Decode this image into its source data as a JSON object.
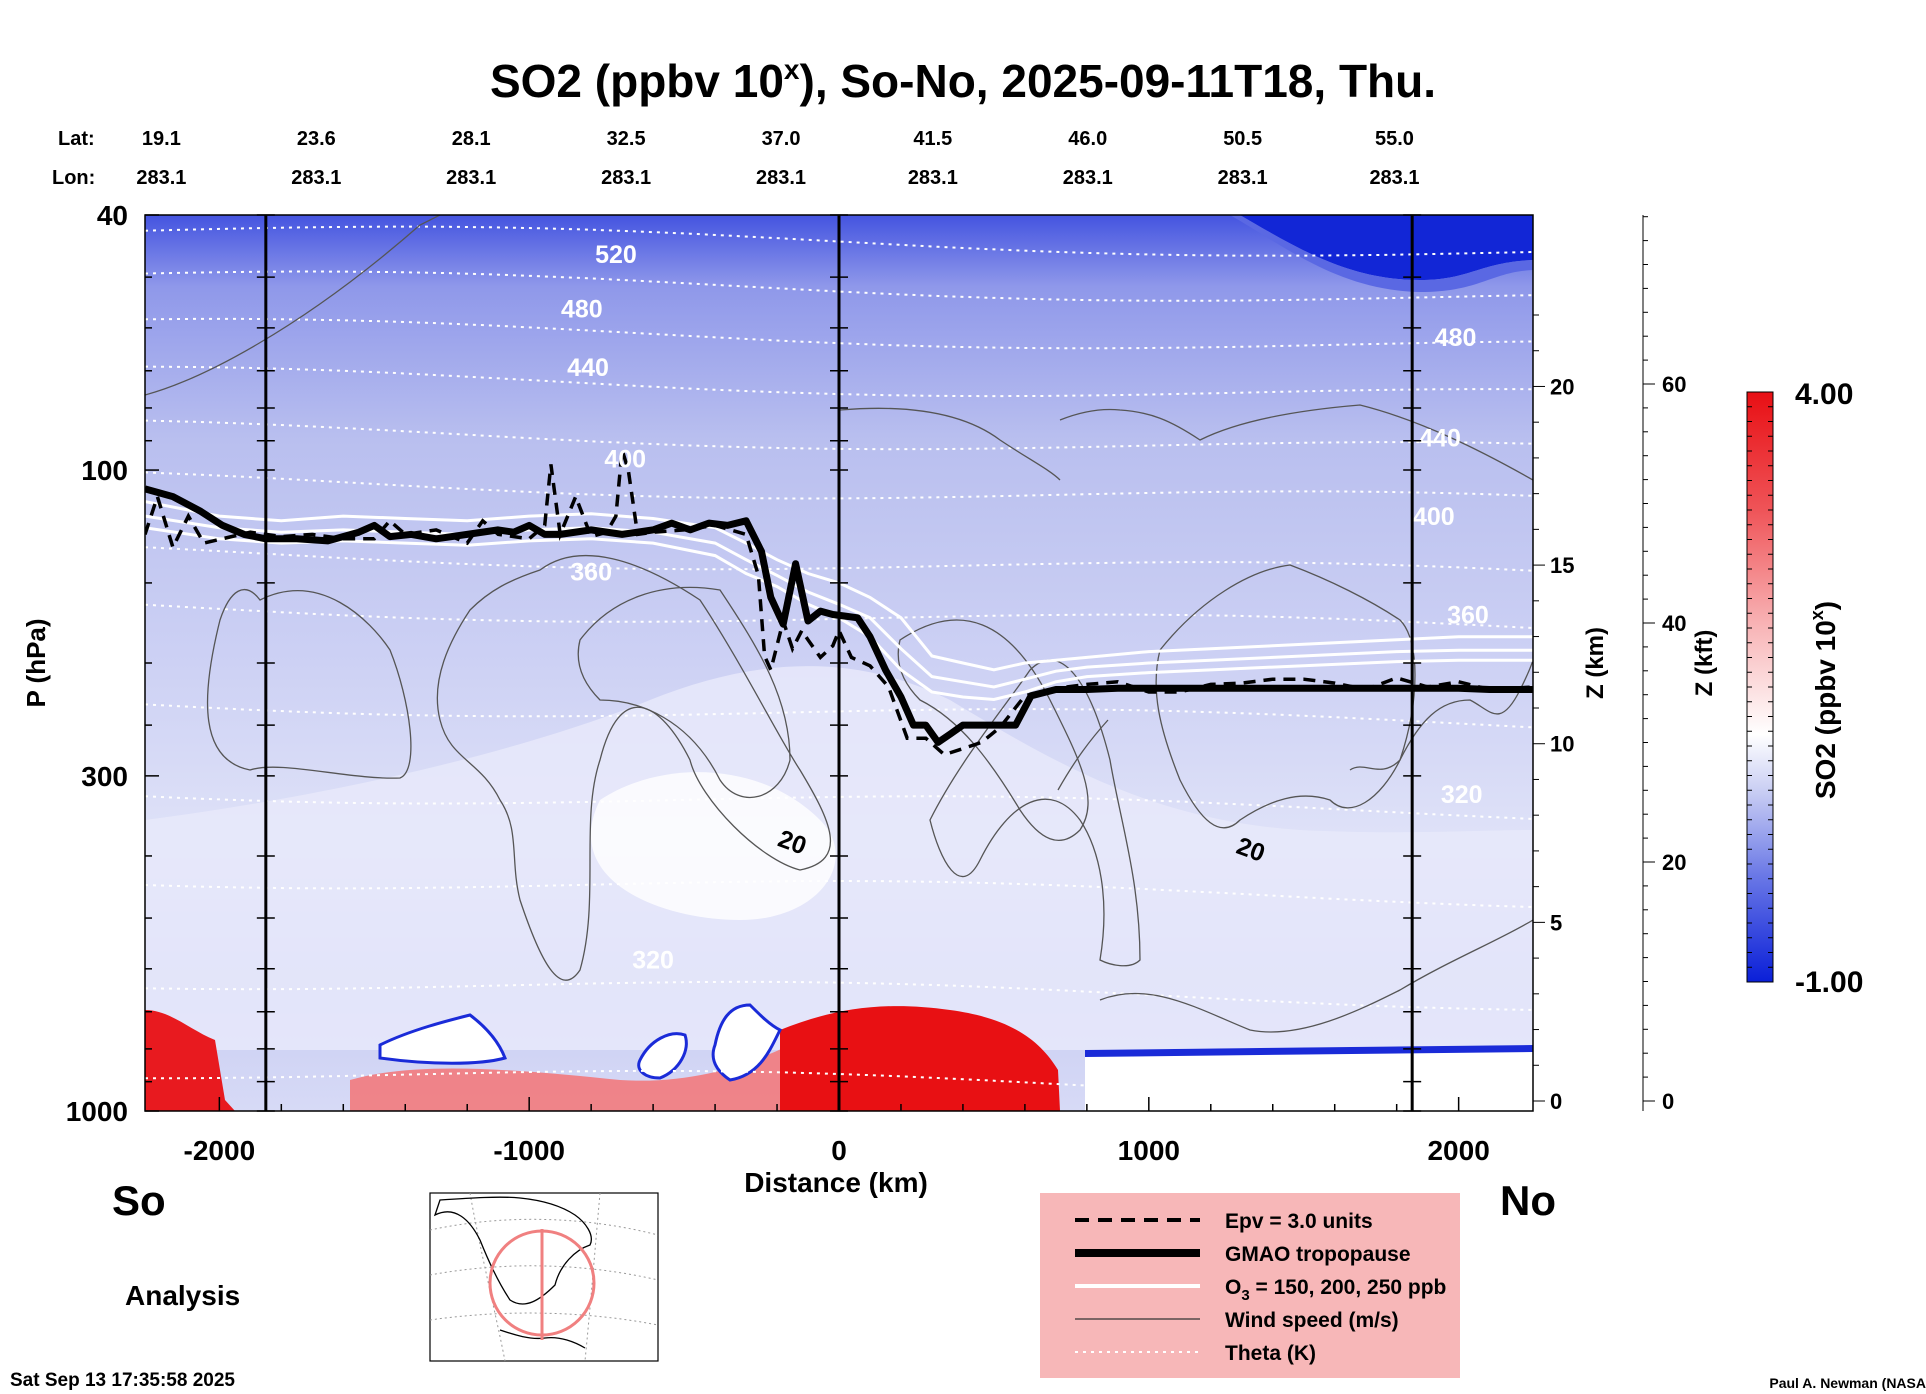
{
  "chart_data": {
    "type": "heatmap",
    "title_main": "SO2 (ppbv 10",
    "title_sup": "x",
    "title_rest": "), So-No, 2025-09-11T18, Thu.",
    "lat_label": "Lat:",
    "lon_label": "Lon:",
    "lats": [
      "19.1",
      "23.6",
      "28.1",
      "32.5",
      "37.0",
      "41.5",
      "46.0",
      "50.5",
      "55.0"
    ],
    "lons": [
      "283.1",
      "283.1",
      "283.1",
      "283.1",
      "283.1",
      "283.1",
      "283.1",
      "283.1",
      "283.1"
    ],
    "lat_lon_distances": [
      -2200,
      -1700,
      -1200,
      -700,
      -200,
      290,
      790,
      1290,
      1780
    ],
    "xlabel": "Distance (km)",
    "xlim": [
      -2240,
      2240
    ],
    "xticks": [
      -2000,
      -1000,
      0,
      1000,
      2000
    ],
    "vertical_lines": [
      -1850,
      0,
      1850
    ],
    "ylabel": "P (hPa)",
    "yscale": "log",
    "ylim": [
      1000,
      40
    ],
    "yticks": [
      40,
      100,
      300,
      1000
    ],
    "zkm_label": "Z (km)",
    "zkm_ticks": [
      0,
      5,
      10,
      15,
      20
    ],
    "zkft_label": "Z (kft)",
    "zkft_ticks": [
      0,
      20,
      40,
      60
    ],
    "colorbar": {
      "label": "SO2 (ppbv 10",
      "label_sup": "x",
      "label_end": ")",
      "max": "4.00",
      "min": "-1.00"
    },
    "theta_labels": [
      {
        "text": "520",
        "x": -720,
        "p": 46
      },
      {
        "text": "480",
        "x": -830,
        "p": 56
      },
      {
        "text": "440",
        "x": -810,
        "p": 69
      },
      {
        "text": "400",
        "x": -690,
        "p": 96
      },
      {
        "text": "480",
        "x": 1990,
        "p": 62
      },
      {
        "text": "440",
        "x": 1940,
        "p": 89
      },
      {
        "text": "400",
        "x": 1920,
        "p": 118
      },
      {
        "text": "360",
        "x": 2030,
        "p": 168
      },
      {
        "text": "360",
        "x": -800,
        "p": 144
      },
      {
        "text": "320",
        "x": -600,
        "p": 580
      },
      {
        "text": "320",
        "x": 2010,
        "p": 320
      }
    ],
    "wind_labels": [
      {
        "text": "20",
        "x": -150,
        "p": 380
      },
      {
        "text": "20",
        "x": 1330,
        "p": 390
      }
    ],
    "tropopause_gmao": {
      "x": [
        -2240,
        -2150,
        -2060,
        -1990,
        -1920,
        -1850,
        -1750,
        -1650,
        -1550,
        -1500,
        -1450,
        -1380,
        -1300,
        -1200,
        -1100,
        -1050,
        -1000,
        -950,
        -900,
        -800,
        -700,
        -600,
        -540,
        -480,
        -420,
        -360,
        -300,
        -250,
        -220,
        -180,
        -140,
        -100,
        -60,
        -20,
        20,
        60,
        100,
        150,
        200,
        240,
        280,
        320,
        360,
        400,
        460,
        520,
        570,
        620,
        700,
        800,
        900,
        1000,
        1100,
        1200,
        1300,
        1400,
        1500,
        1600,
        1700,
        1800,
        1900,
        2000,
        2100,
        2240
      ],
      "p": [
        107,
        110,
        116,
        122,
        126,
        128,
        128,
        129,
        125,
        122,
        127,
        126,
        128,
        126,
        124,
        125,
        122,
        126,
        126,
        124,
        126,
        124,
        121,
        124,
        121,
        122,
        120,
        134,
        158,
        174,
        140,
        172,
        166,
        168,
        169,
        170,
        182,
        205,
        226,
        250,
        250,
        266,
        258,
        250,
        250,
        250,
        250,
        225,
        220,
        220,
        219,
        219,
        219,
        219,
        219,
        219,
        219,
        219,
        219,
        219,
        219,
        219,
        220,
        220
      ]
    },
    "epv_3pvu": {
      "x": [
        -2240,
        -2200,
        -2150,
        -2100,
        -2050,
        -1900,
        -1800,
        -1700,
        -1600,
        -1500,
        -1450,
        -1400,
        -1300,
        -1200,
        -1150,
        -1100,
        -1000,
        -950,
        -930,
        -900,
        -850,
        -800,
        -750,
        -720,
        -700,
        -680,
        -650,
        -600,
        -500,
        -400,
        -300,
        -260,
        -240,
        -220,
        -180,
        -150,
        -120,
        -100,
        -60,
        -20,
        0,
        40,
        100,
        160,
        220,
        280,
        340,
        400,
        460,
        520,
        600,
        700,
        800,
        900,
        1000,
        1100,
        1200,
        1300,
        1400,
        1500,
        1600,
        1700,
        1800,
        1900,
        2000,
        2100,
        2240
      ],
      "p": [
        126,
        110,
        132,
        118,
        130,
        125,
        127,
        126,
        128,
        128,
        120,
        126,
        124,
        130,
        120,
        126,
        128,
        122,
        98,
        126,
        110,
        127,
        125,
        118,
        93,
        100,
        126,
        125,
        124,
        122,
        126,
        146,
        195,
        205,
        172,
        190,
        178,
        184,
        196,
        188,
        178,
        196,
        202,
        218,
        262,
        262,
        278,
        272,
        266,
        252,
        225,
        219,
        216,
        214,
        222,
        222,
        216,
        215,
        212,
        212,
        215,
        220,
        211,
        218,
        214,
        220,
        218
      ]
    },
    "o3_contours": [
      {
        "x": [
          -2240,
          -2000,
          -1800,
          -1600,
          -1400,
          -1200,
          -1000,
          -800,
          -600,
          -400,
          -300,
          -200,
          -100,
          0,
          100,
          200,
          300,
          400,
          500,
          600,
          700,
          800,
          1000,
          1200,
          1400,
          1600,
          1800,
          2000,
          2240
        ],
        "p": [
          112,
          118,
          120,
          118,
          119,
          120,
          118,
          117,
          119,
          123,
          130,
          138,
          145,
          150,
          158,
          170,
          195,
          200,
          205,
          200,
          198,
          196,
          192,
          190,
          188,
          186,
          184,
          182,
          182
        ]
      },
      {
        "x": [
          -2240,
          -2000,
          -1800,
          -1600,
          -1400,
          -1200,
          -1000,
          -800,
          -600,
          -400,
          -300,
          -200,
          -100,
          0,
          100,
          200,
          300,
          400,
          500,
          600,
          700,
          800,
          1000,
          1200,
          1400,
          1600,
          1800,
          2000,
          2240
        ],
        "p": [
          118,
          123,
          125,
          124,
          125,
          126,
          124,
          123,
          125,
          130,
          138,
          146,
          155,
          162,
          170,
          190,
          210,
          214,
          218,
          212,
          206,
          203,
          200,
          198,
          196,
          194,
          192,
          191,
          191
        ]
      },
      {
        "x": [
          -2240,
          -2000,
          -1800,
          -1600,
          -1400,
          -1200,
          -1000,
          -800,
          -600,
          -400,
          -300,
          -200,
          -100,
          0,
          100,
          200,
          300,
          400,
          500,
          600,
          700,
          800,
          1000,
          1200,
          1400,
          1600,
          1800,
          2000,
          2240
        ],
        "p": [
          123,
          128,
          130,
          129,
          130,
          131,
          129,
          128,
          130,
          136,
          145,
          152,
          162,
          170,
          182,
          205,
          222,
          226,
          228,
          222,
          214,
          210,
          207,
          205,
          203,
          201,
          199,
          198,
          198
        ]
      }
    ],
    "footer": {
      "so": "So",
      "no": "No",
      "analysis": "Analysis",
      "timestamp": "Sat Sep 13 17:35:58 2025",
      "credit": "Paul A. Newman (NASA"
    },
    "legend": [
      {
        "label": "Epv = 3.0 units",
        "style": "dashed"
      },
      {
        "label": "GMAO tropopause",
        "style": "thick"
      },
      {
        "label": "O",
        "label_sub": "3",
        "label_rest": " = 150, 200, 250 ppb",
        "style": "white"
      },
      {
        "label": "Wind speed (m/s)",
        "style": "thin"
      },
      {
        "label": "Theta (K)",
        "style": "dotted"
      }
    ],
    "colors": {
      "high": "#e81010",
      "low": "#1a2bd8",
      "mid": "#c9cdf2",
      "legend_bg": "#f7b7b8"
    }
  }
}
